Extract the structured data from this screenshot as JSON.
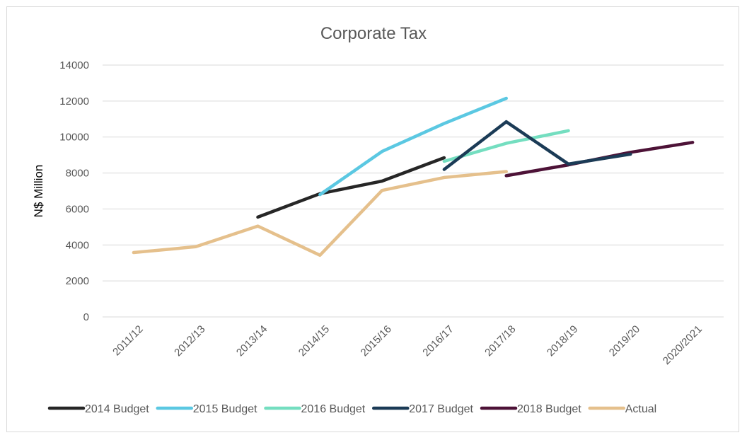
{
  "chart_data": {
    "type": "line",
    "title": "Corporate Tax",
    "xlabel": "",
    "ylabel": "N$ Million",
    "ylim": [
      0,
      14000
    ],
    "yticks": [
      0,
      2000,
      4000,
      6000,
      8000,
      10000,
      12000,
      14000
    ],
    "grid": true,
    "legend_position": "bottom",
    "categories": [
      "2011/12",
      "2012/13",
      "2013/14",
      "2014/15",
      "2015/16",
      "2016/17",
      "2017/18",
      "2018/19",
      "2019/20",
      "2020/2021"
    ],
    "series": [
      {
        "name": "2014 Budget",
        "color": "#262626",
        "values": [
          null,
          null,
          5550,
          6850,
          7550,
          8850,
          null,
          null,
          null,
          null
        ]
      },
      {
        "name": "2015 Budget",
        "color": "#5bc8e2",
        "values": [
          null,
          null,
          null,
          6800,
          9200,
          10750,
          12150,
          null,
          null,
          null
        ]
      },
      {
        "name": "2016 Budget",
        "color": "#74dec0",
        "values": [
          null,
          null,
          null,
          null,
          null,
          8650,
          9650,
          10350,
          null,
          null
        ]
      },
      {
        "name": "2017 Budget",
        "color": "#1b3b56",
        "values": [
          null,
          null,
          null,
          null,
          null,
          8200,
          10850,
          8500,
          9050,
          null
        ]
      },
      {
        "name": "2018 Budget",
        "color": "#4d1237",
        "values": [
          null,
          null,
          null,
          null,
          null,
          null,
          7850,
          8450,
          9150,
          9700
        ]
      },
      {
        "name": "Actual",
        "color": "#e5c08c",
        "values": [
          3580,
          3900,
          5050,
          3430,
          7030,
          7750,
          8080,
          null,
          null,
          null
        ]
      }
    ]
  }
}
